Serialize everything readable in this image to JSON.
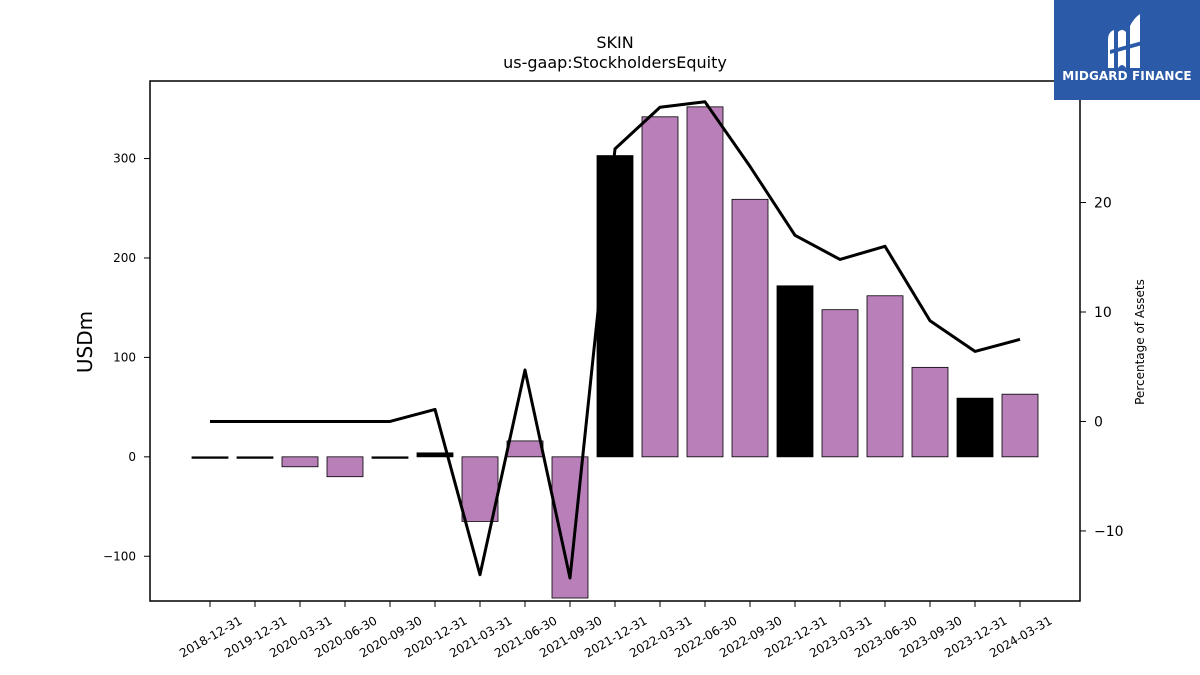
{
  "chart_data": {
    "type": "bar",
    "title": "SKIN",
    "subtitle": "us-gaap:StockholdersEquity",
    "ylabel": "USDm",
    "y2label": "Percentage of Assets",
    "ylim": [
      -145,
      378
    ],
    "y2lim": [
      -16.4,
      31.1
    ],
    "yticks": [
      -100,
      0,
      100,
      200,
      300
    ],
    "y2ticks": [
      -10,
      0,
      10,
      20
    ],
    "categories": [
      "2018-12-31",
      "2019-12-31",
      "2020-03-31",
      "2020-06-30",
      "2020-09-30",
      "2020-12-31",
      "2021-03-31",
      "2021-06-30",
      "2021-09-30",
      "2021-12-31",
      "2022-03-31",
      "2022-06-30",
      "2022-09-30",
      "2022-12-31",
      "2023-03-31",
      "2023-06-30",
      "2023-09-30",
      "2023-12-31",
      "2024-03-31"
    ],
    "series": [
      {
        "values": [
          -0.5,
          -1.5,
          -10,
          -20,
          -0.5,
          4,
          -65,
          16,
          -142,
          303,
          342,
          352,
          259,
          172,
          148,
          162,
          90,
          59,
          63
        ],
        "bar_colors": [
          "#000000",
          "#000000",
          "#b97fb9",
          "#b97fb9",
          "#000000",
          "#000000",
          "#b97fb9",
          "#b97fb9",
          "#b97fb9",
          "#000000",
          "#b97fb9",
          "#b97fb9",
          "#b97fb9",
          "#000000",
          "#b97fb9",
          "#b97fb9",
          "#b97fb9",
          "#000000",
          "#b97fb9"
        ]
      },
      {
        "axis": "right",
        "type": "line",
        "color": "#000000",
        "values": [
          0,
          0,
          0,
          0,
          0,
          1.1,
          -14.0,
          4.7,
          -14.3,
          24.9,
          28.7,
          29.2,
          23.3,
          17.0,
          14.8,
          16.0,
          9.2,
          6.4,
          7.5
        ]
      }
    ],
    "colors": {
      "black": "#000000",
      "purple": "#b97fb9"
    },
    "grid": false
  },
  "logo": {
    "text": "MIDGARD FINANCE",
    "icon": "midgard-logo-icon",
    "background": "#2b5aa9"
  }
}
